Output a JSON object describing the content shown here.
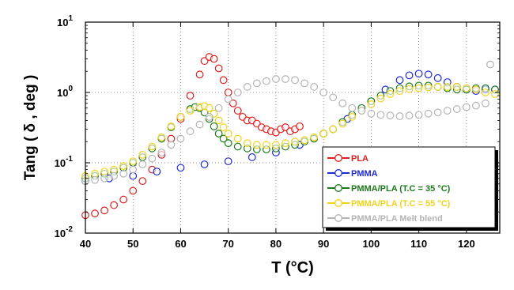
{
  "chart_data": {
    "type": "scatter",
    "xlabel": "T (°C)",
    "ylabel": "Tang ( δ , deg )",
    "xlim": [
      40,
      127
    ],
    "ylim": [
      0.01,
      10
    ],
    "y_scale": "log",
    "x_ticks": [
      40,
      50,
      60,
      70,
      80,
      90,
      100,
      110,
      120
    ],
    "y_ticks": [
      {
        "value": 0.01,
        "base": "10",
        "exp": "-2"
      },
      {
        "value": 0.1,
        "base": "10",
        "exp": "-1"
      },
      {
        "value": 1,
        "label": "10",
        "sup": "0"
      },
      {
        "value": 10,
        "base": "10",
        "exp": "1"
      }
    ],
    "grid": "dotted",
    "legend_position": "bottom-right",
    "series": [
      {
        "name": "PLA",
        "color": "#dd1f1f",
        "points": [
          [
            40,
            0.018
          ],
          [
            42,
            0.019
          ],
          [
            44,
            0.021
          ],
          [
            46,
            0.025
          ],
          [
            48,
            0.03
          ],
          [
            50,
            0.04
          ],
          [
            52,
            0.055
          ],
          [
            54,
            0.08
          ],
          [
            56,
            0.13
          ],
          [
            58,
            0.22
          ],
          [
            60,
            0.42
          ],
          [
            62,
            0.9
          ],
          [
            64,
            1.8
          ],
          [
            65,
            2.8
          ],
          [
            66,
            3.2
          ],
          [
            67,
            3.0
          ],
          [
            68,
            2.2
          ],
          [
            69,
            1.5
          ],
          [
            70,
            1.0
          ],
          [
            71,
            0.7
          ],
          [
            72,
            0.55
          ],
          [
            73,
            0.45
          ],
          [
            74,
            0.4
          ],
          [
            75,
            0.4
          ],
          [
            76,
            0.36
          ],
          [
            77,
            0.32
          ],
          [
            78,
            0.3
          ],
          [
            79,
            0.28
          ],
          [
            80,
            0.27
          ],
          [
            81,
            0.3
          ],
          [
            82,
            0.32
          ],
          [
            83,
            0.28
          ],
          [
            84,
            0.3
          ],
          [
            85,
            0.33
          ]
        ]
      },
      {
        "name": "PMMA",
        "color": "#1d2ad6",
        "points": [
          [
            40,
            0.055
          ],
          [
            45,
            0.06
          ],
          [
            50,
            0.065
          ],
          [
            55,
            0.075
          ],
          [
            60,
            0.085
          ],
          [
            65,
            0.095
          ],
          [
            70,
            0.105
          ],
          [
            75,
            0.12
          ],
          [
            80,
            0.14
          ],
          [
            85,
            0.18
          ],
          [
            90,
            0.26
          ],
          [
            95,
            0.42
          ],
          [
            100,
            0.75
          ],
          [
            103,
            1.1
          ],
          [
            106,
            1.5
          ],
          [
            108,
            1.75
          ],
          [
            110,
            1.85
          ],
          [
            112,
            1.8
          ],
          [
            114,
            1.6
          ],
          [
            116,
            1.4
          ],
          [
            118,
            1.2
          ],
          [
            120,
            1.1
          ],
          [
            122,
            1.05
          ],
          [
            124,
            1.1
          ],
          [
            126,
            1.1
          ]
        ]
      },
      {
        "name": "PMMA/PLA  (T.C = 35 °C)",
        "color": "#1e7a1e",
        "points": [
          [
            40,
            0.06
          ],
          [
            42,
            0.065
          ],
          [
            44,
            0.07
          ],
          [
            46,
            0.075
          ],
          [
            48,
            0.085
          ],
          [
            50,
            0.1
          ],
          [
            52,
            0.12
          ],
          [
            54,
            0.16
          ],
          [
            56,
            0.22
          ],
          [
            58,
            0.32
          ],
          [
            60,
            0.45
          ],
          [
            62,
            0.58
          ],
          [
            63,
            0.62
          ],
          [
            64,
            0.6
          ],
          [
            65,
            0.52
          ],
          [
            66,
            0.42
          ],
          [
            67,
            0.33
          ],
          [
            68,
            0.26
          ],
          [
            69,
            0.22
          ],
          [
            70,
            0.19
          ],
          [
            72,
            0.17
          ],
          [
            74,
            0.16
          ],
          [
            76,
            0.155
          ],
          [
            78,
            0.155
          ],
          [
            80,
            0.16
          ],
          [
            82,
            0.17
          ],
          [
            84,
            0.18
          ],
          [
            86,
            0.2
          ],
          [
            88,
            0.22
          ],
          [
            90,
            0.26
          ],
          [
            92,
            0.3
          ],
          [
            94,
            0.38
          ],
          [
            96,
            0.48
          ],
          [
            98,
            0.6
          ],
          [
            100,
            0.75
          ],
          [
            102,
            0.9
          ],
          [
            104,
            1.05
          ],
          [
            106,
            1.15
          ],
          [
            108,
            1.22
          ],
          [
            110,
            1.25
          ],
          [
            112,
            1.25
          ],
          [
            114,
            1.2
          ],
          [
            116,
            1.15
          ],
          [
            118,
            1.1
          ],
          [
            120,
            1.1
          ],
          [
            122,
            1.15
          ],
          [
            124,
            1.15
          ],
          [
            126,
            1.1
          ]
        ]
      },
      {
        "name": "PMMA/PLA (T.C = 55 °C)",
        "color": "#f2d21a",
        "points": [
          [
            40,
            0.065
          ],
          [
            42,
            0.07
          ],
          [
            44,
            0.075
          ],
          [
            46,
            0.08
          ],
          [
            48,
            0.09
          ],
          [
            50,
            0.105
          ],
          [
            52,
            0.13
          ],
          [
            54,
            0.17
          ],
          [
            56,
            0.23
          ],
          [
            58,
            0.33
          ],
          [
            60,
            0.45
          ],
          [
            62,
            0.55
          ],
          [
            64,
            0.62
          ],
          [
            65,
            0.64
          ],
          [
            66,
            0.6
          ],
          [
            67,
            0.5
          ],
          [
            68,
            0.4
          ],
          [
            69,
            0.32
          ],
          [
            70,
            0.26
          ],
          [
            72,
            0.22
          ],
          [
            74,
            0.19
          ],
          [
            76,
            0.18
          ],
          [
            78,
            0.18
          ],
          [
            80,
            0.18
          ],
          [
            82,
            0.19
          ],
          [
            84,
            0.2
          ],
          [
            86,
            0.21
          ],
          [
            88,
            0.23
          ],
          [
            90,
            0.26
          ],
          [
            92,
            0.3
          ],
          [
            94,
            0.36
          ],
          [
            96,
            0.45
          ],
          [
            98,
            0.55
          ],
          [
            100,
            0.68
          ],
          [
            102,
            0.82
          ],
          [
            104,
            0.95
          ],
          [
            106,
            1.05
          ],
          [
            108,
            1.12
          ],
          [
            110,
            1.15
          ],
          [
            112,
            1.18
          ],
          [
            114,
            1.2
          ],
          [
            116,
            1.2
          ],
          [
            118,
            1.2
          ],
          [
            120,
            1.15
          ],
          [
            122,
            1.1
          ],
          [
            124,
            1.0
          ],
          [
            126,
            0.95
          ]
        ]
      },
      {
        "name": "PMMA/PLA Melt blend",
        "color": "#b4b4b4",
        "points": [
          [
            40,
            0.055
          ],
          [
            42,
            0.057
          ],
          [
            44,
            0.06
          ],
          [
            46,
            0.065
          ],
          [
            48,
            0.07
          ],
          [
            50,
            0.08
          ],
          [
            52,
            0.095
          ],
          [
            54,
            0.115
          ],
          [
            56,
            0.14
          ],
          [
            58,
            0.18
          ],
          [
            60,
            0.22
          ],
          [
            62,
            0.28
          ],
          [
            64,
            0.35
          ],
          [
            66,
            0.45
          ],
          [
            68,
            0.6
          ],
          [
            70,
            0.8
          ],
          [
            72,
            1.0
          ],
          [
            74,
            1.2
          ],
          [
            76,
            1.35
          ],
          [
            78,
            1.45
          ],
          [
            80,
            1.55
          ],
          [
            82,
            1.55
          ],
          [
            84,
            1.5
          ],
          [
            86,
            1.35
          ],
          [
            88,
            1.2
          ],
          [
            90,
            1.0
          ],
          [
            92,
            0.85
          ],
          [
            94,
            0.7
          ],
          [
            96,
            0.6
          ],
          [
            98,
            0.55
          ],
          [
            100,
            0.5
          ],
          [
            102,
            0.48
          ],
          [
            104,
            0.47
          ],
          [
            106,
            0.46
          ],
          [
            108,
            0.47
          ],
          [
            110,
            0.48
          ],
          [
            112,
            0.5
          ],
          [
            114,
            0.52
          ],
          [
            116,
            0.55
          ],
          [
            118,
            0.58
          ],
          [
            120,
            0.62
          ],
          [
            122,
            0.65
          ],
          [
            124,
            0.7
          ],
          [
            125,
            2.5
          ]
        ]
      }
    ]
  }
}
